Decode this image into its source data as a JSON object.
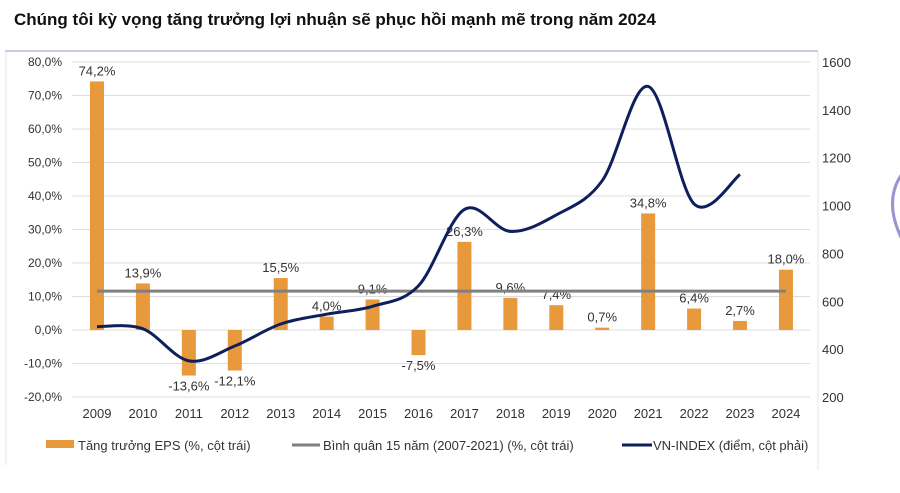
{
  "title": "Chúng tôi kỳ vọng tăng trưởng lợi nhuận sẽ phục hồi mạnh mẽ trong năm 2024",
  "chart_data": {
    "type": "bar",
    "title": "Chúng tôi kỳ vọng tăng trưởng lợi nhuận sẽ phục hồi mạnh mẽ trong năm 2024",
    "categories": [
      "2009",
      "2010",
      "2011",
      "2012",
      "2013",
      "2014",
      "2015",
      "2016",
      "2017",
      "2018",
      "2019",
      "2020",
      "2021",
      "2022",
      "2023",
      "2024"
    ],
    "y_left": {
      "range": [
        -20,
        80
      ],
      "ticks": [
        "80,0%",
        "70,0%",
        "60,0%",
        "50,0%",
        "40,0%",
        "30,0%",
        "20,0%",
        "10,0%",
        "0,0%",
        "-10,0%",
        "-20,0%"
      ],
      "tick_values": [
        80,
        70,
        60,
        50,
        40,
        30,
        20,
        10,
        0,
        -10,
        -20
      ]
    },
    "y_right": {
      "range": [
        200,
        1600
      ],
      "ticks": [
        "1600",
        "1400",
        "1200",
        "1000",
        "800",
        "600",
        "400",
        "200"
      ],
      "tick_values": [
        1600,
        1400,
        1200,
        1000,
        800,
        600,
        400,
        200
      ]
    },
    "grid": true,
    "legend_position": "bottom",
    "series": [
      {
        "name": "Tăng trưởng EPS (%, cột trái)",
        "type": "bar",
        "axis": "left",
        "color": "#E8993B",
        "values": [
          74.2,
          13.9,
          -13.6,
          -12.1,
          15.5,
          4.0,
          9.1,
          -7.5,
          26.3,
          9.6,
          7.4,
          0.7,
          34.8,
          6.4,
          2.7,
          18.0
        ],
        "labels": [
          "74,2%",
          "13,9%",
          "-13,6%",
          "-12,1%",
          "15,5%",
          "4,0%",
          "9,1%",
          "-7,5%",
          "26,3%",
          "9,6%",
          "7,4%",
          "0,7%",
          "34,8%",
          "6,4%",
          "2,7%",
          "18,0%"
        ]
      },
      {
        "name": "Bình quân 15 năm (2007-2021) (%, cột trái)",
        "type": "line",
        "axis": "left",
        "color": "#808080",
        "value": 11.6
      },
      {
        "name": "VN-INDEX (điểm, cột phải)",
        "type": "line",
        "axis": "right",
        "color": "#0F1F5C",
        "values": [
          494,
          485,
          351,
          413,
          505,
          546,
          579,
          665,
          984,
          892,
          961,
          1104,
          1498,
          1007,
          1130,
          null
        ]
      }
    ]
  }
}
